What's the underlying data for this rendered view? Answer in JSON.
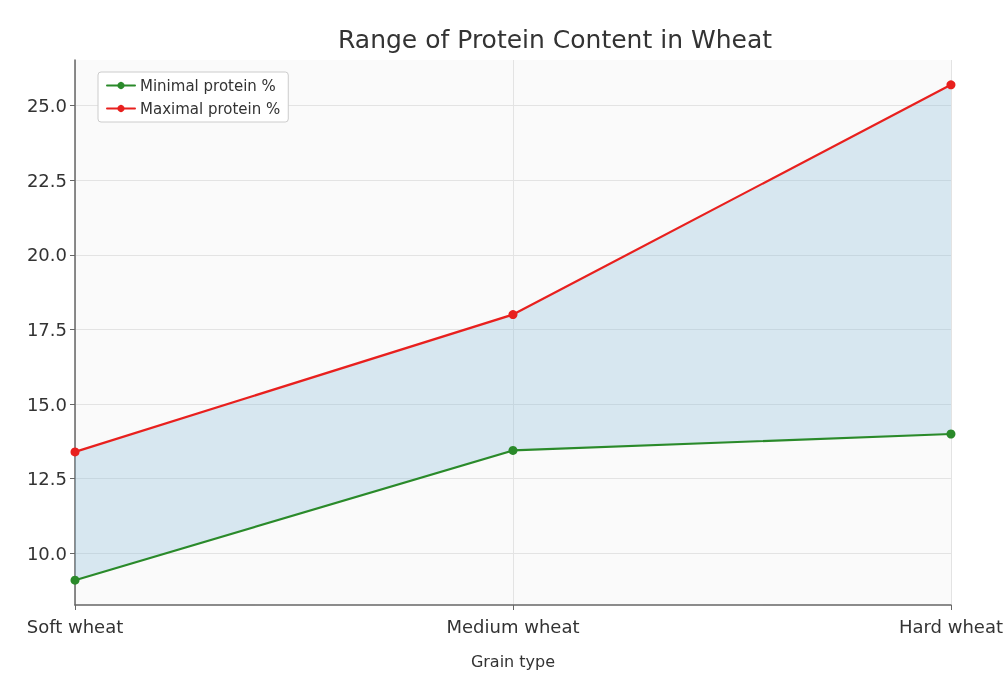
{
  "chart_data": {
    "type": "line",
    "title": "Range of Protein Content in Wheat",
    "xlabel": "Grain type",
    "categories": [
      "Soft wheat",
      "Medium wheat",
      "Hard wheat"
    ],
    "series": [
      {
        "name": "Minimal protein %",
        "color": "#2a8a2a",
        "values": [
          9.1,
          13.45,
          14.0
        ]
      },
      {
        "name": "Maximal protein %",
        "color": "#e8201e",
        "values": [
          13.4,
          18.0,
          25.7
        ],
        "lower": [
          9.1,
          13.45,
          14.0
        ],
        "upper": [
          13.4,
          18.0,
          25.7
        ]
      }
    ],
    "ylim": [
      8.27,
      26.53
    ],
    "yticks": [
      {
        "value": 10,
        "label": "10.0"
      },
      {
        "value": 12.5,
        "label": "12.5"
      },
      {
        "value": 15,
        "label": "15.0"
      },
      {
        "value": 17.5,
        "label": "17.5"
      },
      {
        "value": 20,
        "label": "20.0"
      },
      {
        "value": 22.5,
        "label": "22.5"
      },
      {
        "value": 25,
        "label": "25.0"
      }
    ],
    "grid": true,
    "legend": "top left",
    "marker": "circle",
    "line_style": "solid"
  }
}
